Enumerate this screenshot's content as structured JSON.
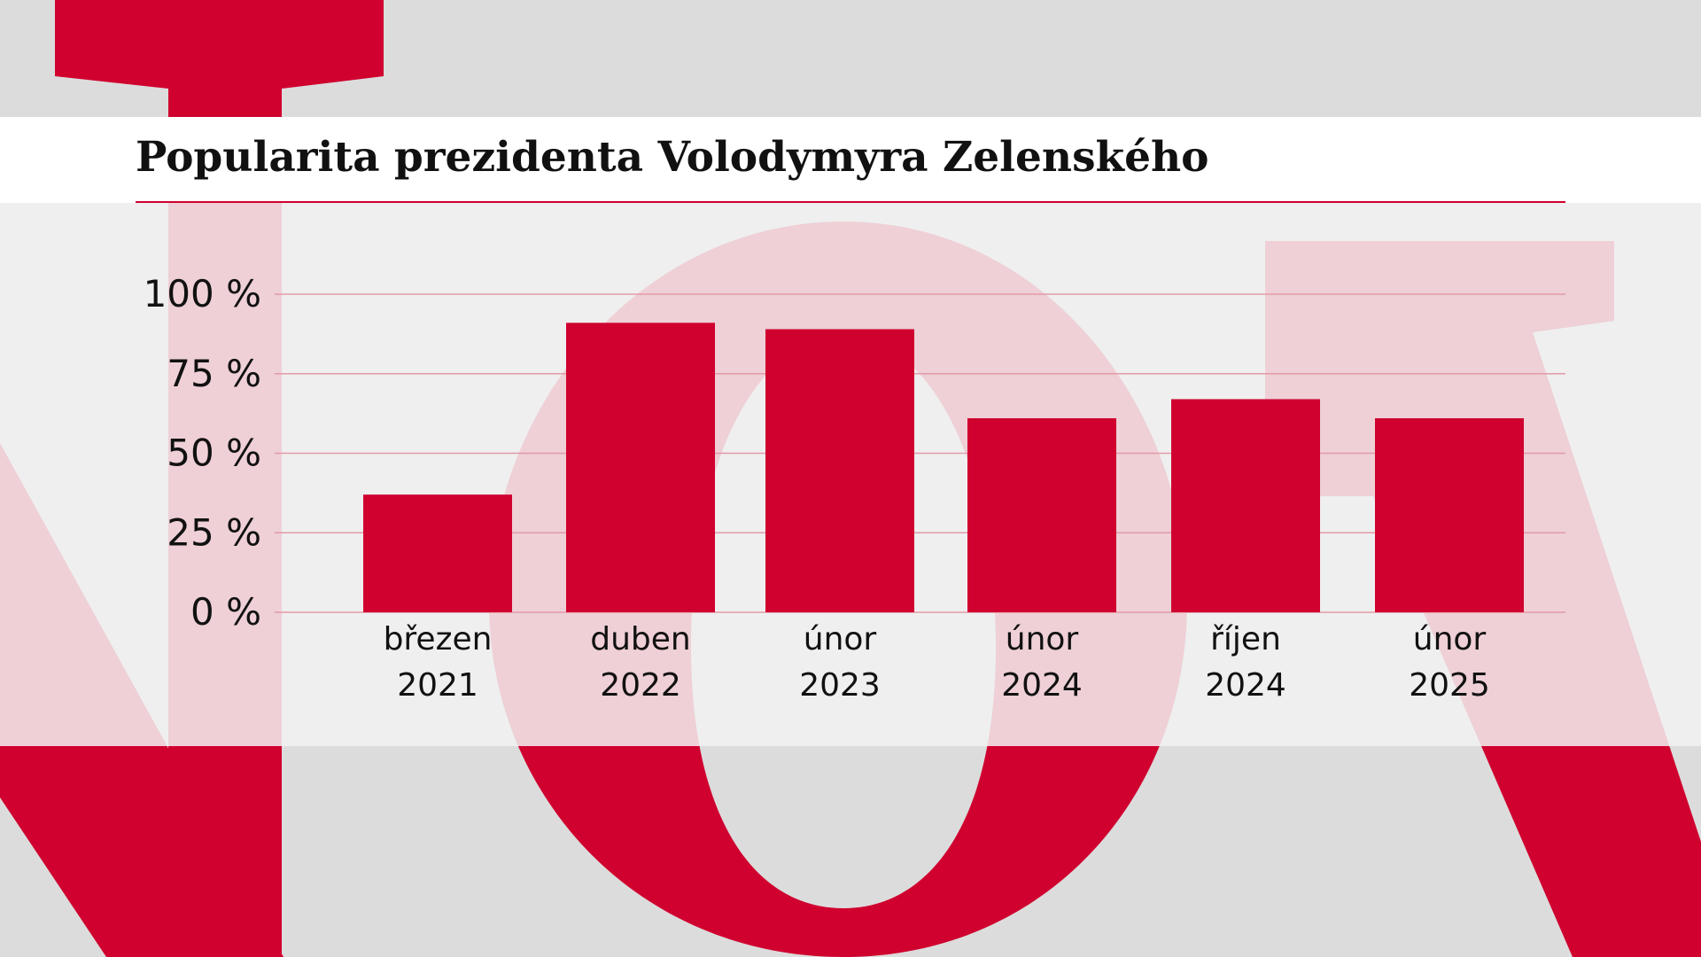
{
  "colors": {
    "accent": "#d0002f",
    "background": "#dcdcdc",
    "title_bar": "#ffffff",
    "gridline": "#e39aa8",
    "text": "#111111"
  },
  "chart_data": {
    "type": "bar",
    "title": "Popularita prezidenta Volodymyra Zelenského",
    "xlabel": "",
    "ylabel": "",
    "categories": [
      [
        "březen",
        "2021"
      ],
      [
        "duben",
        "2022"
      ],
      [
        "únor",
        "2023"
      ],
      [
        "únor",
        "2024"
      ],
      [
        "říjen",
        "2024"
      ],
      [
        "únor",
        "2025"
      ]
    ],
    "values": [
      37,
      91,
      89,
      61,
      67,
      61
    ],
    "ylim": [
      0,
      100
    ],
    "yticks": [
      0,
      25,
      50,
      75,
      100
    ],
    "ytick_labels": [
      "0 %",
      "25 %",
      "50 %",
      "75 %",
      "100 %"
    ],
    "grid": true,
    "legend": "none"
  }
}
